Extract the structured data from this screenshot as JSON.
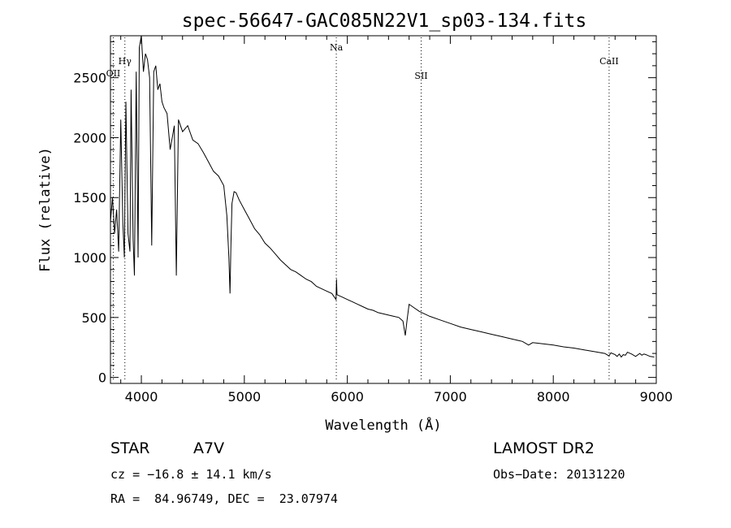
{
  "chart_data": {
    "type": "line",
    "title": "spec-56647-GAC085N22V1_sp03-134.fits",
    "xlabel": "Wavelength (Å)",
    "ylabel": "Flux (relative)",
    "xlim": [
      3700,
      9000
    ],
    "ylim": [
      -50,
      2850
    ],
    "x_ticks": [
      4000,
      5000,
      6000,
      7000,
      8000,
      9000
    ],
    "y_ticks": [
      0,
      500,
      1000,
      1500,
      2000,
      2500
    ],
    "grid": false,
    "spectrum": {
      "x": [
        3700,
        3720,
        3740,
        3760,
        3780,
        3800,
        3820,
        3835,
        3850,
        3870,
        3889,
        3900,
        3920,
        3933,
        3950,
        3968,
        3980,
        4000,
        4020,
        4040,
        4060,
        4080,
        4101,
        4120,
        4140,
        4160,
        4180,
        4200,
        4220,
        4250,
        4280,
        4300,
        4320,
        4340,
        4360,
        4380,
        4400,
        4450,
        4500,
        4550,
        4600,
        4650,
        4700,
        4750,
        4800,
        4830,
        4850,
        4861,
        4870,
        4880,
        4900,
        4920,
        4950,
        5000,
        5050,
        5100,
        5150,
        5200,
        5250,
        5300,
        5350,
        5400,
        5450,
        5500,
        5550,
        5600,
        5650,
        5700,
        5750,
        5800,
        5850,
        5890,
        5895,
        5900,
        5950,
        6000,
        6050,
        6100,
        6150,
        6200,
        6250,
        6300,
        6350,
        6400,
        6450,
        6500,
        6540,
        6563,
        6580,
        6600,
        6650,
        6700,
        6800,
        6900,
        7000,
        7100,
        7200,
        7300,
        7400,
        7500,
        7600,
        7700,
        7760,
        7800,
        7900,
        8000,
        8100,
        8200,
        8300,
        8400,
        8500,
        8540,
        8560,
        8600,
        8620,
        8640,
        8660,
        8680,
        8700,
        8720,
        8760,
        8800,
        8840,
        8860,
        8880,
        8900,
        8940,
        8980
      ],
      "y": [
        1300,
        1500,
        1200,
        1400,
        1050,
        2150,
        1300,
        1000,
        2300,
        1200,
        1050,
        2400,
        1150,
        850,
        2550,
        1000,
        2750,
        2850,
        2550,
        2700,
        2650,
        2500,
        1100,
        2550,
        2600,
        2400,
        2450,
        2300,
        2250,
        2200,
        1900,
        2000,
        2100,
        850,
        2150,
        2100,
        2050,
        2100,
        1980,
        1950,
        1880,
        1800,
        1720,
        1680,
        1600,
        1350,
        1000,
        700,
        1100,
        1450,
        1550,
        1540,
        1480,
        1400,
        1320,
        1240,
        1190,
        1120,
        1080,
        1030,
        980,
        940,
        900,
        880,
        850,
        820,
        800,
        760,
        740,
        720,
        700,
        650,
        820,
        690,
        670,
        650,
        630,
        610,
        590,
        570,
        560,
        540,
        530,
        520,
        510,
        500,
        470,
        350,
        480,
        610,
        580,
        550,
        510,
        480,
        450,
        420,
        400,
        380,
        360,
        340,
        320,
        300,
        270,
        290,
        280,
        270,
        255,
        245,
        230,
        215,
        200,
        180,
        205,
        190,
        175,
        195,
        170,
        190,
        185,
        210,
        195,
        175,
        200,
        185,
        195,
        190,
        175,
        170
      ]
    },
    "line_marks": [
      {
        "label": "OII",
        "x": 3727
      },
      {
        "label": "Hγ",
        "x": 3840
      },
      {
        "label": "Na",
        "x": 5893
      },
      {
        "label": "SII",
        "x": 6717
      },
      {
        "label": "CaII",
        "x": 8542
      }
    ]
  },
  "footer": {
    "object_type": "STAR",
    "subclass": "A7V",
    "survey": "LAMOST DR2",
    "cz": "cz = −16.8 ± 14.1 km/s",
    "obs_date": "Obs−Date: 20131220",
    "coords": "RA =  84.96749, DEC =  23.07974"
  }
}
